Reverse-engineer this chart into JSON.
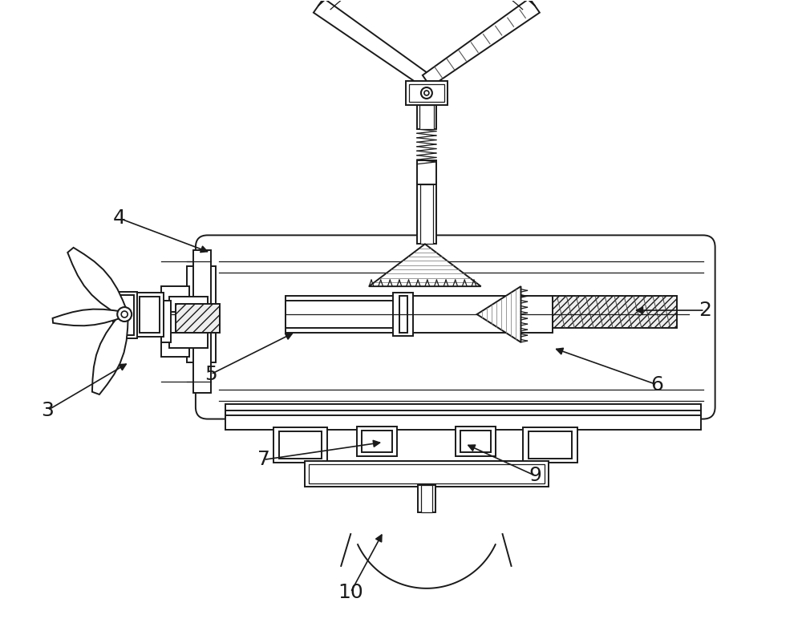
{
  "bg_color": "#ffffff",
  "line_color": "#1a1a1a",
  "figsize": [
    10.0,
    8.02
  ],
  "dpi": 100,
  "labels_info": [
    [
      "2",
      880,
      415,
      790,
      415
    ],
    [
      "3",
      58,
      290,
      160,
      350
    ],
    [
      "4",
      148,
      530,
      262,
      487
    ],
    [
      "5",
      262,
      335,
      368,
      388
    ],
    [
      "6",
      820,
      322,
      690,
      368
    ],
    [
      "7",
      328,
      228,
      478,
      250
    ],
    [
      "9",
      668,
      208,
      580,
      248
    ],
    [
      "10",
      437,
      62,
      478,
      138
    ]
  ]
}
